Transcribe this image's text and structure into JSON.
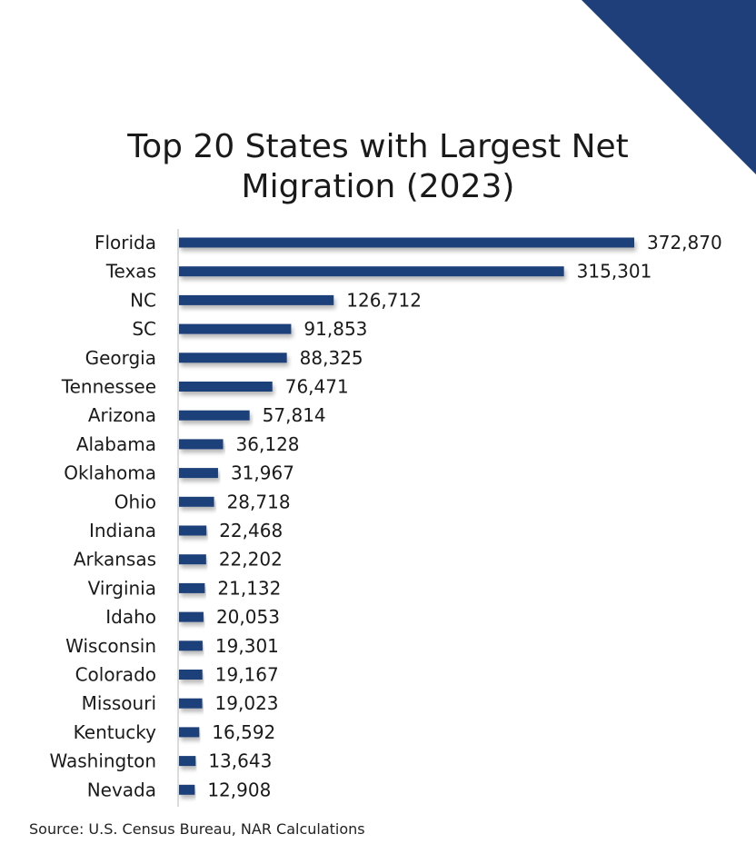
{
  "chart_data": {
    "type": "bar",
    "orientation": "horizontal",
    "title_line1": "Top 20 States with Largest Net",
    "title_line2": "Migration (2023)",
    "categories": [
      "Florida",
      "Texas",
      "NC",
      "SC",
      "Georgia",
      "Tennessee",
      "Arizona",
      "Alabama",
      "Oklahoma",
      "Ohio",
      "Indiana",
      "Arkansas",
      "Virginia",
      "Idaho",
      "Wisconsin",
      "Colorado",
      "Missouri",
      "Kentucky",
      "Washington",
      "Nevada"
    ],
    "values": [
      372870,
      315301,
      126712,
      91853,
      88325,
      76471,
      57814,
      36128,
      31967,
      28718,
      22468,
      22202,
      21132,
      20053,
      19301,
      19167,
      19023,
      16592,
      13643,
      12908
    ],
    "value_labels": [
      "372,870",
      "315,301",
      "126,712",
      "91,853",
      "88,325",
      "76,471",
      "57,814",
      "36,128",
      "31,967",
      "28,718",
      "22,468",
      "22,202",
      "21,132",
      "20,053",
      "19,301",
      "19,167",
      "19,023",
      "16,592",
      "13,643",
      "12,908"
    ],
    "xlim": [
      0,
      372870
    ],
    "grid": false,
    "legend": "none",
    "bar_color": "#1e3f7a"
  },
  "source_text": "Source: U.S. Census Bureau, NAR Calculations",
  "colors": {
    "accent_triangle": "#1e3f7a",
    "axis_line": "#d0d0d0",
    "text": "#1a1a1a"
  }
}
